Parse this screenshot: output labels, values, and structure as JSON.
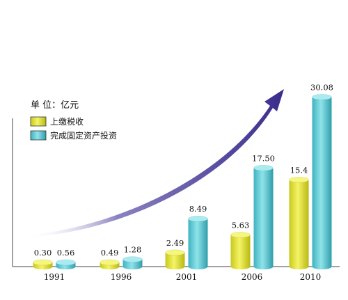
{
  "chart_data": {
    "type": "bar",
    "unit_label": "单 位：亿元",
    "categories": [
      "1991",
      "1996",
      "2001",
      "2006",
      "2010"
    ],
    "series": [
      {
        "name": "上缴税收",
        "color": "#e6e640",
        "values": [
          0.3,
          0.49,
          2.49,
          5.63,
          15.4
        ],
        "labels": [
          "0.30",
          "0.49",
          "2.49",
          "5.63",
          "15.4"
        ]
      },
      {
        "name": "完成固定资产投资",
        "color": "#5ccbd6",
        "values": [
          0.56,
          1.28,
          8.49,
          17.5,
          30.08
        ],
        "labels": [
          "0.56",
          "1.28",
          "8.49",
          "17.50",
          "30.08"
        ]
      }
    ],
    "legend_position": "top-left",
    "grid": false,
    "trend_arrow": true
  }
}
